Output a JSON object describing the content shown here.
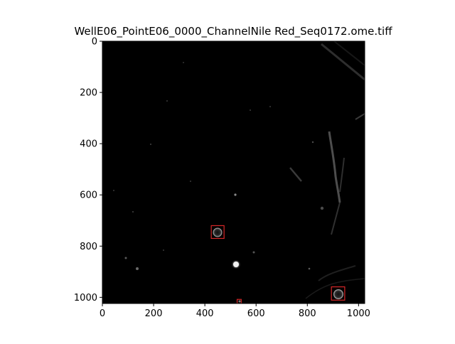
{
  "figure": {
    "title": "WellE06_PointE06_0000_ChannelNile Red_Seq0172.ome.tiff",
    "background": "#ffffff",
    "image_background": "#000000",
    "box_color": "#d62728"
  },
  "axes": {
    "x_ticks": [
      {
        "value": 0,
        "label": "0"
      },
      {
        "value": 200,
        "label": "200"
      },
      {
        "value": 400,
        "label": "400"
      },
      {
        "value": 600,
        "label": "600"
      },
      {
        "value": 800,
        "label": "800"
      },
      {
        "value": 1000,
        "label": "1000"
      }
    ],
    "y_ticks": [
      {
        "value": 0,
        "label": "0"
      },
      {
        "value": 200,
        "label": "200"
      },
      {
        "value": 400,
        "label": "400"
      },
      {
        "value": 600,
        "label": "600"
      },
      {
        "value": 800,
        "label": "800"
      },
      {
        "value": 1000,
        "label": "1000"
      }
    ],
    "x_range": [
      0,
      1024
    ],
    "y_range": [
      0,
      1024
    ],
    "y_inverted": true
  },
  "detections": [
    {
      "x": 450,
      "y": 745,
      "w": 50,
      "h": 50
    },
    {
      "x": 920,
      "y": 985,
      "w": 52,
      "h": 52
    },
    {
      "x": 534,
      "y": 1016,
      "w": 16,
      "h": 16
    }
  ]
}
